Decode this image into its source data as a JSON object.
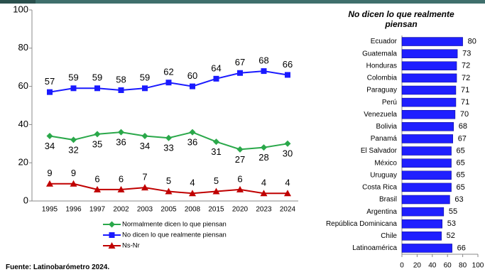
{
  "footer": "Fuente: Latinobarómetro 2024.",
  "chart_data": [
    {
      "type": "line",
      "categories": [
        "1995",
        "1996",
        "1997",
        "2002",
        "2003",
        "2005",
        "2008",
        "2015",
        "2020",
        "2023",
        "2024"
      ],
      "series": [
        {
          "name": "Normalmente dicen lo que piensan",
          "color": "#2aa84a",
          "marker": "diamond",
          "values": [
            34,
            32,
            35,
            36,
            34,
            33,
            36,
            31,
            27,
            28,
            30
          ]
        },
        {
          "name": "No dicen lo que realmente piensan",
          "color": "#1a1aff",
          "marker": "square",
          "values": [
            57,
            59,
            59,
            58,
            59,
            62,
            60,
            64,
            67,
            68,
            66
          ]
        },
        {
          "name": "Ns-Nr",
          "color": "#c00000",
          "marker": "triangle",
          "values": [
            9,
            9,
            6,
            6,
            7,
            5,
            4,
            5,
            6,
            4,
            4
          ]
        }
      ],
      "ylim": [
        0,
        100
      ],
      "yticks": [
        0,
        20,
        40,
        60,
        80,
        100
      ],
      "grid": false
    },
    {
      "type": "hbar",
      "title": "No dicen lo que realmente piensan",
      "categories": [
        "Ecuador",
        "Guatemala",
        "Honduras",
        "Colombia",
        "Paraguay",
        "Perú",
        "Venezuela",
        "Bolivia",
        "Panamá",
        "El Salvador",
        "México",
        "Uruguay",
        "Costa Rica",
        "Brasil",
        "Argentina",
        "República Dominicana",
        "Chile",
        "Latinoamérica"
      ],
      "values": [
        80,
        73,
        72,
        72,
        71,
        71,
        70,
        68,
        67,
        65,
        65,
        65,
        65,
        63,
        55,
        53,
        52,
        66
      ],
      "color": "#1f1fff",
      "xlim": [
        0,
        100
      ],
      "xticks": [
        0,
        20,
        40,
        60,
        80,
        100
      ],
      "grid": false
    }
  ]
}
